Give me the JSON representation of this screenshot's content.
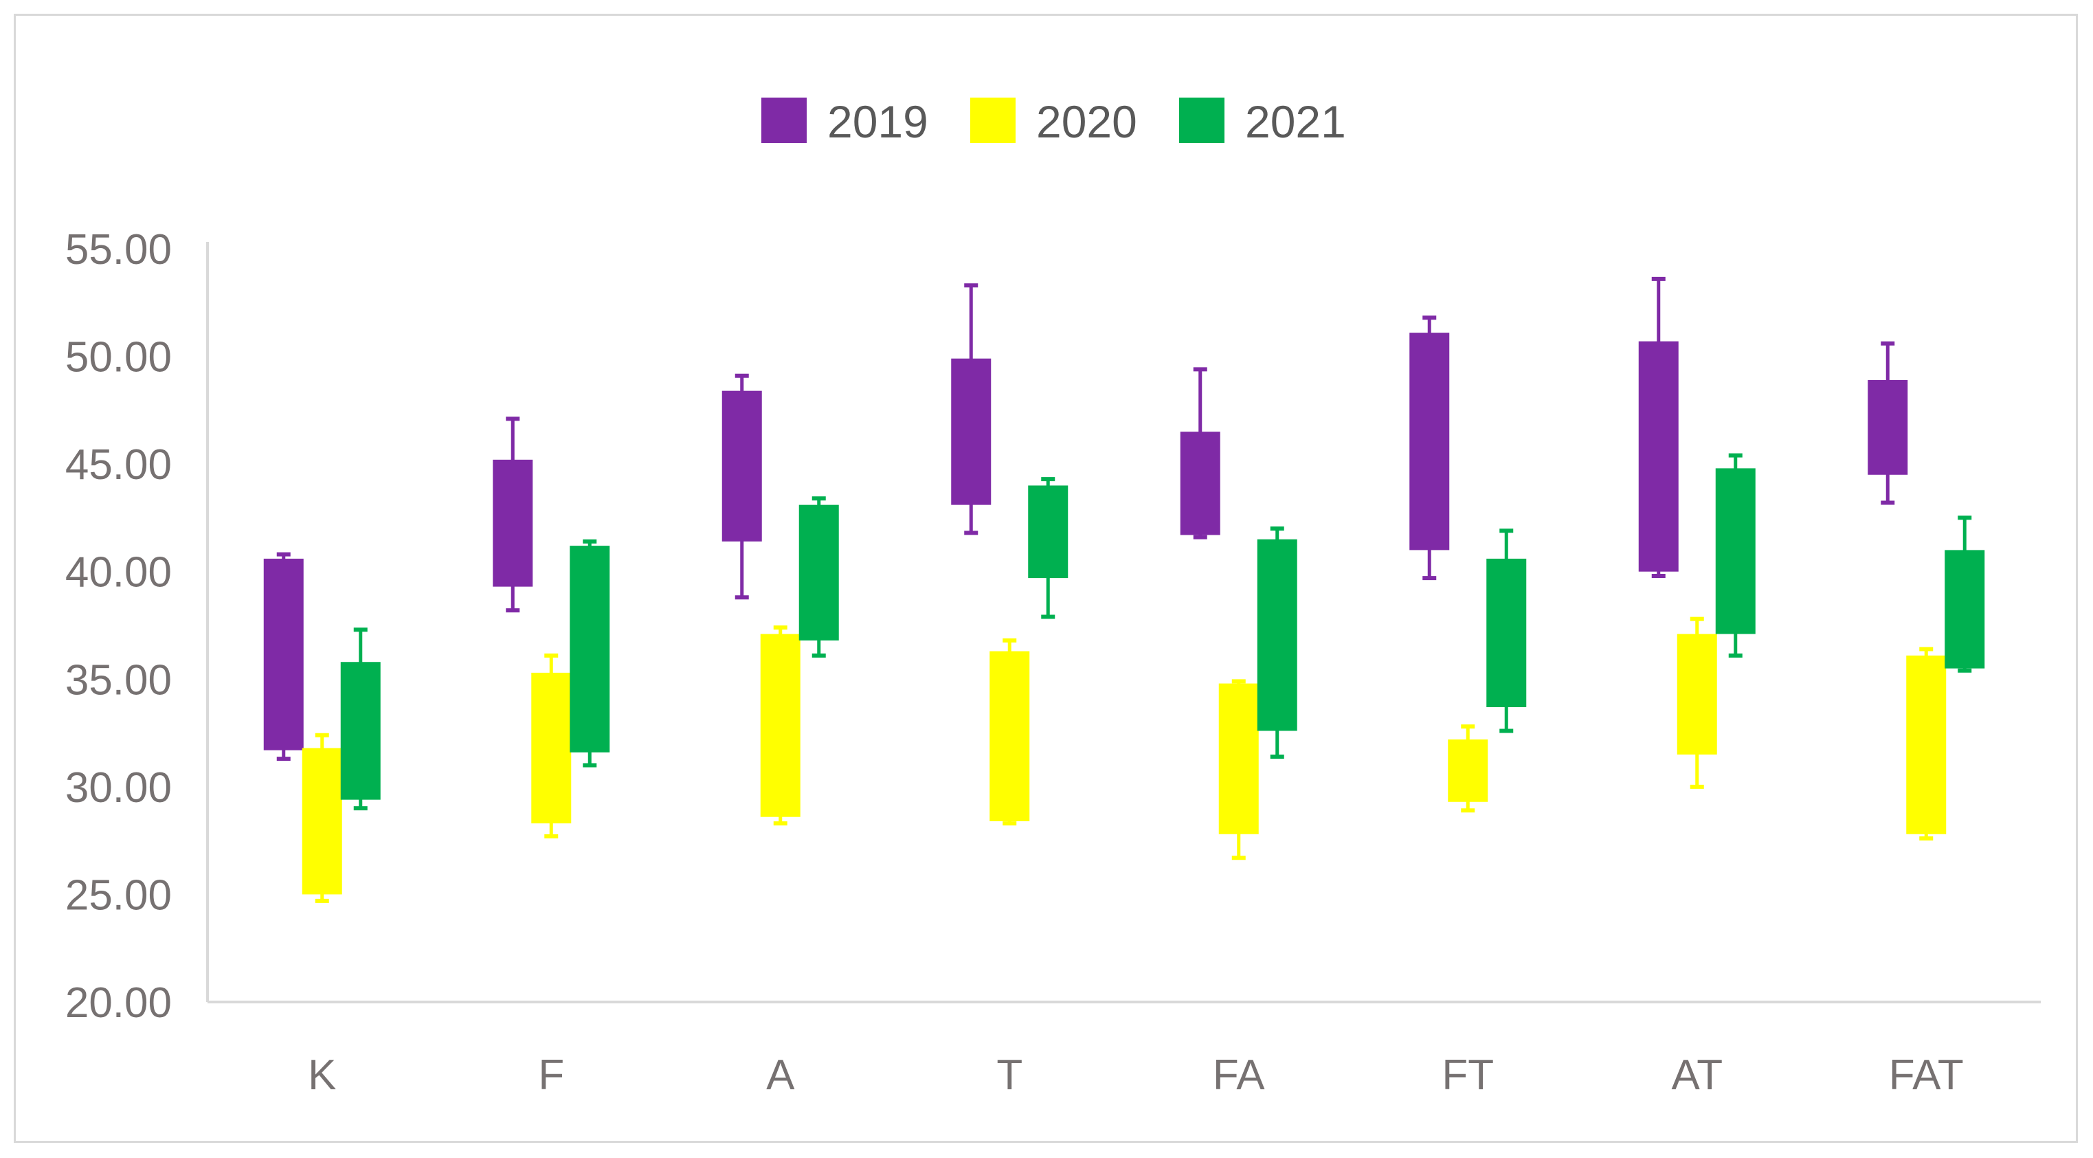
{
  "chart_data": {
    "type": "box",
    "title": "",
    "xlabel": "",
    "ylabel": "",
    "ylim": [
      20,
      55
    ],
    "ytick_step": 5,
    "grid": false,
    "legend_position": "top-center",
    "categories": [
      "K",
      "F",
      "A",
      "T",
      "FA",
      "FT",
      "AT",
      "FAT"
    ],
    "series": [
      {
        "name": "2019",
        "color": "#7f2aa6",
        "boxes": [
          {
            "min": 31.3,
            "q1": 31.7,
            "q3": 40.6,
            "max": 40.8
          },
          {
            "min": 38.2,
            "q1": 39.3,
            "q3": 45.2,
            "max": 47.1
          },
          {
            "min": 38.8,
            "q1": 41.4,
            "q3": 48.4,
            "max": 49.1
          },
          {
            "min": 41.8,
            "q1": 43.1,
            "q3": 49.9,
            "max": 53.3
          },
          {
            "min": 41.6,
            "q1": 41.7,
            "q3": 46.5,
            "max": 49.4
          },
          {
            "min": 39.7,
            "q1": 41.0,
            "q3": 51.1,
            "max": 51.8
          },
          {
            "min": 39.8,
            "q1": 40.0,
            "q3": 50.7,
            "max": 53.6
          },
          {
            "min": 43.2,
            "q1": 44.5,
            "q3": 48.9,
            "max": 50.6
          }
        ]
      },
      {
        "name": "2020",
        "color": "#ffff00",
        "boxes": [
          {
            "min": 24.7,
            "q1": 25.0,
            "q3": 31.8,
            "max": 32.4
          },
          {
            "min": 27.7,
            "q1": 28.3,
            "q3": 35.3,
            "max": 36.1
          },
          {
            "min": 28.3,
            "q1": 28.6,
            "q3": 37.1,
            "max": 37.4
          },
          {
            "min": 28.3,
            "q1": 28.4,
            "q3": 36.3,
            "max": 36.8
          },
          {
            "min": 26.7,
            "q1": 27.8,
            "q3": 34.8,
            "max": 34.9
          },
          {
            "min": 28.9,
            "q1": 29.3,
            "q3": 32.2,
            "max": 32.8
          },
          {
            "min": 30.0,
            "q1": 31.5,
            "q3": 37.1,
            "max": 37.8
          },
          {
            "min": 27.6,
            "q1": 27.8,
            "q3": 36.1,
            "max": 36.4
          }
        ]
      },
      {
        "name": "2021",
        "color": "#00b050",
        "boxes": [
          {
            "min": 29.0,
            "q1": 29.4,
            "q3": 35.8,
            "max": 37.3
          },
          {
            "min": 31.0,
            "q1": 31.6,
            "q3": 41.2,
            "max": 41.4
          },
          {
            "min": 36.1,
            "q1": 36.8,
            "q3": 43.1,
            "max": 43.4
          },
          {
            "min": 37.9,
            "q1": 39.7,
            "q3": 44.0,
            "max": 44.3
          },
          {
            "min": 31.4,
            "q1": 32.6,
            "q3": 41.5,
            "max": 42.0
          },
          {
            "min": 32.6,
            "q1": 33.7,
            "q3": 40.6,
            "max": 41.9
          },
          {
            "min": 36.1,
            "q1": 37.1,
            "q3": 44.8,
            "max": 45.4
          },
          {
            "min": 35.4,
            "q1": 35.5,
            "q3": 41.0,
            "max": 42.5
          }
        ]
      }
    ]
  }
}
